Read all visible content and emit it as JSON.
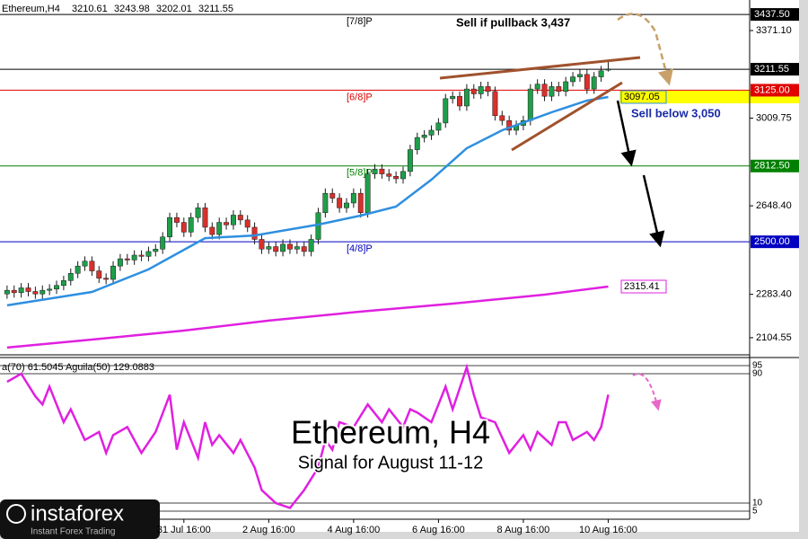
{
  "chart_data": [
    {
      "type": "candlestick",
      "symbol": "Ethereum,H4",
      "title": "Ethereum, H4",
      "subtitle": "Signal for August 11-12",
      "annotations": [
        "Sell if pullback 3,437",
        "Sell below 3,050"
      ],
      "xlim": [
        -1,
        105
      ],
      "ylim": [
        2045,
        3497
      ],
      "grid": false,
      "colors": {
        "up": "#1f9e4a",
        "down": "#d9302c",
        "wick": "#1a1a1a"
      },
      "xticks": [
        {
          "value": 25,
          "label": "31 Jul 16:00"
        },
        {
          "value": 37,
          "label": "2 Aug 16:00"
        },
        {
          "value": 49,
          "label": "4 Aug 16:00"
        },
        {
          "value": 61,
          "label": "6 Aug 16:00"
        },
        {
          "value": 73,
          "label": "8 Aug 16:00"
        },
        {
          "value": 85,
          "label": "10 Aug 16:00"
        }
      ],
      "yticks": [
        {
          "value": 3371.1,
          "label": "3371.10"
        },
        {
          "value": 3009.75,
          "label": "3009.75"
        },
        {
          "value": 2648.4,
          "label": "2648.40"
        },
        {
          "value": 2283.4,
          "label": "2283.40"
        },
        {
          "value": 2104.55,
          "label": "2104.55"
        }
      ],
      "open": [
        2285,
        2300,
        2290,
        2310,
        2295,
        2285,
        2300,
        2305,
        2320,
        2340,
        2370,
        2400,
        2420,
        2380,
        2350,
        2345,
        2400,
        2430,
        2425,
        2445,
        2440,
        2460,
        2470,
        2520,
        2600,
        2580,
        2540,
        2600,
        2640,
        2560,
        2530,
        2580,
        2570,
        2610,
        2590,
        2560,
        2510,
        2470,
        2480,
        2460,
        2490,
        2470,
        2480,
        2460,
        2510,
        2620,
        2700,
        2680,
        2640,
        2660,
        2700,
        2620,
        2780,
        2800,
        2780,
        2770,
        2760,
        2790,
        2880,
        2930,
        2940,
        2960,
        2990,
        3090,
        3100,
        3060,
        3130,
        3110,
        3140,
        3120,
        3020,
        3000,
        2960,
        2980,
        3000,
        3130,
        3150,
        3100,
        3140,
        3120,
        3160,
        3180,
        3190,
        3130,
        3180,
        3210.61
      ],
      "high": [
        2320,
        2320,
        2330,
        2330,
        2315,
        2320,
        2325,
        2340,
        2360,
        2390,
        2420,
        2440,
        2440,
        2400,
        2370,
        2420,
        2450,
        2450,
        2465,
        2465,
        2480,
        2490,
        2540,
        2620,
        2620,
        2600,
        2620,
        2660,
        2660,
        2580,
        2600,
        2600,
        2630,
        2630,
        2610,
        2580,
        2530,
        2500,
        2500,
        2510,
        2510,
        2500,
        2500,
        2530,
        2640,
        2720,
        2720,
        2700,
        2680,
        2720,
        2720,
        2800,
        2820,
        2820,
        2800,
        2790,
        2810,
        2900,
        2950,
        2960,
        2980,
        3010,
        3110,
        3120,
        3120,
        3150,
        3150,
        3160,
        3160,
        3140,
        3040,
        3020,
        3000,
        3020,
        3150,
        3170,
        3170,
        3160,
        3160,
        3180,
        3200,
        3210,
        3210,
        3200,
        3225,
        3243.98
      ],
      "low": [
        2265,
        2270,
        2270,
        2275,
        2265,
        2265,
        2280,
        2285,
        2300,
        2320,
        2350,
        2380,
        2360,
        2330,
        2325,
        2325,
        2380,
        2405,
        2405,
        2420,
        2420,
        2440,
        2450,
        2500,
        2560,
        2520,
        2520,
        2580,
        2540,
        2510,
        2510,
        2550,
        2550,
        2570,
        2540,
        2490,
        2450,
        2450,
        2440,
        2440,
        2450,
        2450,
        2440,
        2440,
        2490,
        2600,
        2660,
        2620,
        2620,
        2640,
        2600,
        2600,
        2760,
        2760,
        2750,
        2740,
        2740,
        2770,
        2860,
        2910,
        2920,
        2940,
        2970,
        3070,
        3040,
        3040,
        3090,
        3090,
        3100,
        3000,
        2980,
        2940,
        2940,
        2960,
        2980,
        3110,
        3080,
        3080,
        3100,
        3100,
        3140,
        3160,
        3110,
        3110,
        3160,
        3202.01
      ],
      "close": [
        2300,
        2290,
        2310,
        2295,
        2285,
        2300,
        2305,
        2320,
        2340,
        2370,
        2400,
        2420,
        2380,
        2350,
        2345,
        2400,
        2430,
        2425,
        2445,
        2440,
        2460,
        2470,
        2520,
        2600,
        2580,
        2540,
        2600,
        2640,
        2560,
        2530,
        2580,
        2570,
        2610,
        2590,
        2560,
        2510,
        2470,
        2480,
        2460,
        2490,
        2470,
        2480,
        2460,
        2510,
        2620,
        2700,
        2680,
        2640,
        2660,
        2700,
        2620,
        2780,
        2800,
        2780,
        2770,
        2760,
        2790,
        2880,
        2930,
        2940,
        2960,
        2990,
        3090,
        3100,
        3060,
        3130,
        3110,
        3140,
        3120,
        3020,
        3000,
        2960,
        2980,
        3000,
        3130,
        3150,
        3100,
        3140,
        3120,
        3160,
        3180,
        3190,
        3130,
        3180,
        3205,
        3211.55
      ],
      "series": [
        {
          "color": "#2f8fe0",
          "label_background": "#ffff00",
          "x": [
            0,
            12,
            20,
            28,
            35,
            44,
            50,
            55,
            60,
            65,
            70,
            77,
            82,
            85
          ],
          "values": [
            2238,
            2293,
            2386,
            2515,
            2526,
            2571,
            2608,
            2645,
            2756,
            2886,
            2960,
            3034,
            3082,
            3097.05
          ]
        },
        {
          "color": "#e020e0",
          "label_background": "#ffffff",
          "x": [
            0,
            12,
            25,
            37,
            50,
            63,
            76,
            85
          ],
          "values": [
            2064,
            2097,
            2134,
            2175,
            2212,
            2245,
            2282,
            2315.41
          ]
        }
      ],
      "levels": [
        {
          "name": "[7/8]P",
          "price": {
            "value": 3437.5,
            "label": "3437.50"
          },
          "color": "#000000"
        },
        {
          "name": "[6/8]P",
          "price": {
            "value": 3125,
            "label": "3125.00"
          },
          "color": "#e00000"
        },
        {
          "name": "[5/8]P",
          "price": {
            "value": 2812.5,
            "label": "2812.50"
          },
          "color": "#008000"
        },
        {
          "name": "[4/8]P",
          "price": {
            "value": 2500,
            "label": "2500.00"
          },
          "color": "#0000c0"
        }
      ]
    },
    {
      "type": "line",
      "title": "a(70) 61.5045   Aguila(50) 129.0883",
      "xlim": [
        -1,
        105
      ],
      "ylim": [
        0,
        100
      ],
      "yticks": [
        95,
        90,
        10,
        5
      ],
      "series": [
        {
          "color": "#e020e0",
          "x": [
            0,
            2,
            4,
            5,
            6,
            8,
            9,
            11,
            13,
            14,
            15,
            17,
            19,
            21,
            23,
            24,
            25,
            27,
            28,
            29,
            30,
            32,
            33,
            35,
            36,
            38,
            40,
            42,
            44,
            45,
            46,
            47,
            49,
            51,
            53,
            54,
            56,
            57,
            58,
            60,
            62,
            63,
            65,
            66,
            67,
            69,
            71,
            73,
            74,
            75,
            77,
            78,
            79,
            80,
            82,
            83,
            84,
            85
          ],
          "values": [
            85,
            90,
            76,
            71,
            82,
            60,
            68,
            49,
            54,
            41,
            52,
            57,
            41,
            54,
            77,
            43,
            60,
            38,
            60,
            46,
            52,
            41,
            49,
            32,
            18,
            10,
            7,
            18,
            32,
            49,
            43,
            60,
            57,
            71,
            60,
            68,
            57,
            68,
            66,
            60,
            82,
            68,
            94,
            77,
            63,
            60,
            41,
            52,
            43,
            54,
            46,
            60,
            60,
            49,
            54,
            49,
            57,
            77
          ]
        }
      ]
    }
  ],
  "brand": {
    "name": "instaforex",
    "tagline": "Instant Forex Trading"
  }
}
